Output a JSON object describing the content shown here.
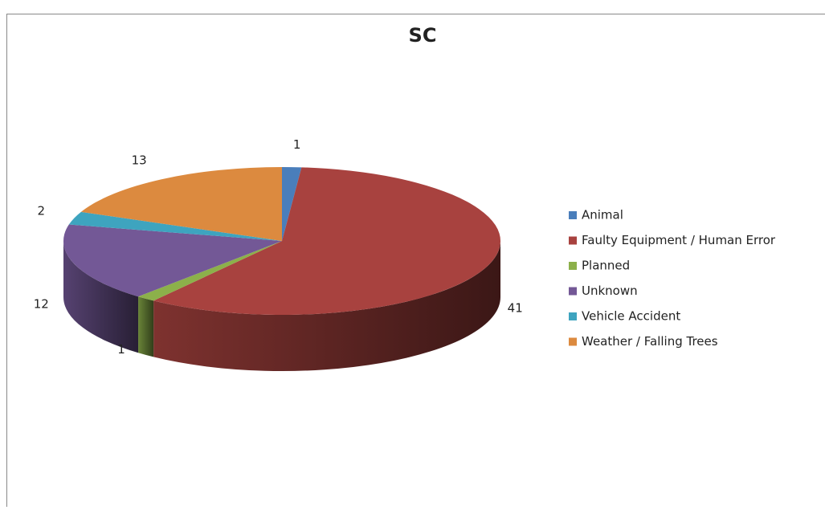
{
  "chart_data": {
    "type": "pie",
    "title": "SC",
    "categories": [
      "Animal",
      "Faulty Equipment / Human Error",
      "Planned",
      "Unknown",
      "Vehicle Accident",
      "Weather / Falling Trees"
    ],
    "values": [
      1,
      41,
      1,
      12,
      2,
      13
    ],
    "colors": [
      "#4a7ebb",
      "#a8423f",
      "#8cb04a",
      "#735896",
      "#3ea4bf",
      "#dc8a3f"
    ],
    "legend": "right"
  }
}
